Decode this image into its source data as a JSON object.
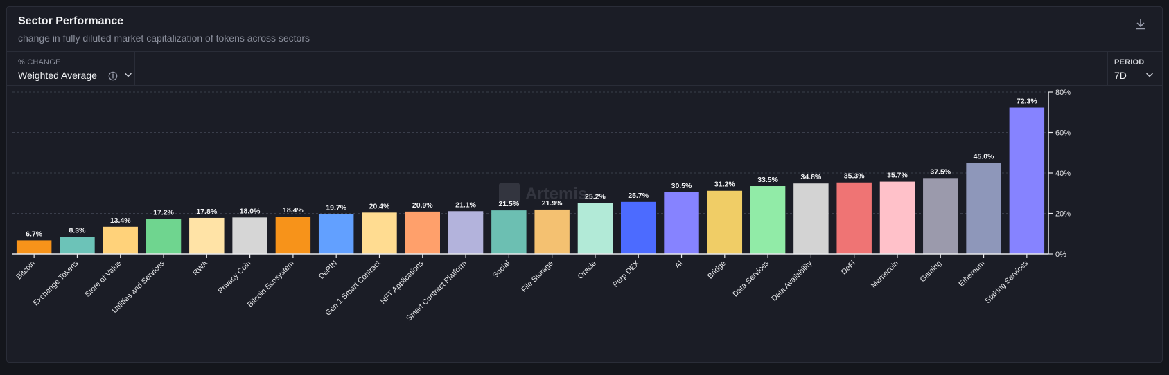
{
  "header": {
    "title": "Sector Performance",
    "subtitle": "change in fully diluted market capitalization of tokens across sectors"
  },
  "controls": {
    "metric_label": "% CHANGE",
    "metric_value": "Weighted Average",
    "period_label": "PERIOD",
    "period_value": "7D"
  },
  "watermark": "Artemis",
  "icons": {
    "download": "download-icon",
    "info": "info-icon",
    "metric_dropdown": "chevron-down-icon",
    "period_dropdown": "chevron-down-icon"
  },
  "chart_data": {
    "type": "bar",
    "categories": [
      "Bitcoin",
      "Exchange Tokens",
      "Store of Value",
      "Utilities and Services",
      "RWA",
      "Privacy Coin",
      "Bitcoin Ecosystem",
      "DePIN",
      "Gen 1 Smart Contract",
      "NFT Applications",
      "Smart Contract Platform",
      "Social",
      "File Storage",
      "Oracle",
      "Perp DEX",
      "AI",
      "Bridge",
      "Data Services",
      "Data Availability",
      "DeFi",
      "Memecoin",
      "Gaming",
      "Ethereum",
      "Staking Services"
    ],
    "values": [
      6.7,
      8.3,
      13.4,
      17.2,
      17.8,
      18.0,
      18.4,
      19.7,
      20.4,
      20.9,
      21.1,
      21.5,
      21.9,
      25.2,
      25.7,
      30.5,
      31.2,
      33.5,
      34.8,
      35.3,
      35.7,
      37.5,
      45.0,
      72.3
    ],
    "data_labels": [
      "6.7%",
      "8.3%",
      "13.4%",
      "17.2%",
      "17.8%",
      "18.0%",
      "18.4%",
      "19.7%",
      "20.4%",
      "20.9%",
      "21.1%",
      "21.5%",
      "21.9%",
      "25.2%",
      "25.7%",
      "30.5%",
      "31.2%",
      "33.5%",
      "34.8%",
      "35.3%",
      "35.7%",
      "37.5%",
      "45.0%",
      "72.3%"
    ],
    "colors": [
      "#f7931a",
      "#6cc3b8",
      "#ffd27a",
      "#6fd58f",
      "#ffe3a6",
      "#d6d6d6",
      "#f7931a",
      "#62a0ff",
      "#ffdc91",
      "#ffa06b",
      "#b3b3dc",
      "#6cbfb2",
      "#f4c171",
      "#b2ead7",
      "#4c6bff",
      "#8683ff",
      "#f0cd66",
      "#91eba7",
      "#d3d3d3",
      "#ef7474",
      "#ffc1c9",
      "#9b9aac",
      "#8e97ba",
      "#8683ff"
    ],
    "ylim": [
      0,
      80
    ],
    "yticks": [
      0,
      20,
      40,
      60,
      80
    ],
    "ytick_labels": [
      "0%",
      "20%",
      "40%",
      "60%",
      "80%"
    ],
    "y_axis_position": "right",
    "grid": true,
    "xlabel": "",
    "ylabel": ""
  }
}
